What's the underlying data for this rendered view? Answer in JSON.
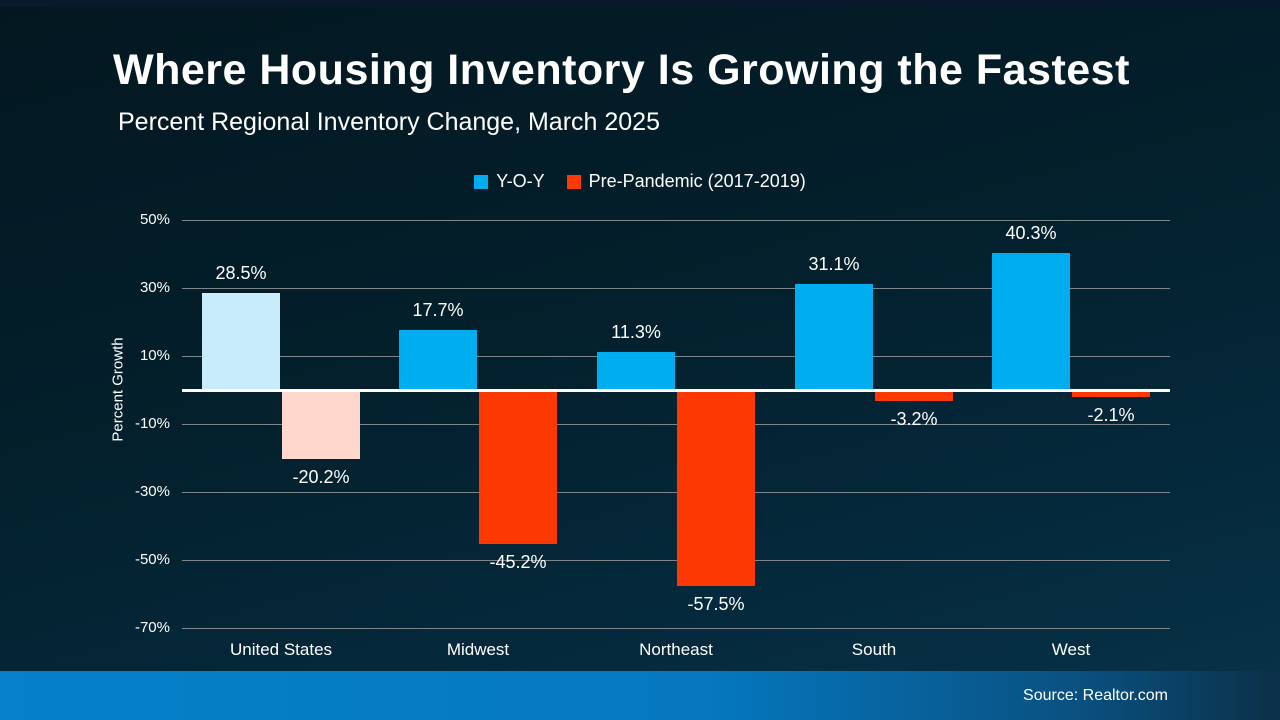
{
  "page": {
    "title": "Where Housing Inventory Is Growing the Fastest",
    "subtitle": "Percent Regional Inventory Change, March 2025",
    "source": "Source: Realtor.com"
  },
  "colors": {
    "yoy": "#00aeef",
    "yoy_highlight": "#c9ecfd",
    "prepandemic": "#fc3903",
    "prepandemic_highlight": "#ffd7cc",
    "gridline": "#7e868c",
    "zero_line": "#ffffff",
    "footer_left": "#0581c9",
    "footer_right": "#0b3047"
  },
  "legend": {
    "items": [
      {
        "label": "Y-O-Y",
        "color": "#00aeef"
      },
      {
        "label": "Pre-Pandemic (2017-2019)",
        "color": "#fc3903"
      }
    ]
  },
  "chart_data": {
    "type": "bar",
    "title": "Where Housing Inventory Is Growing the Fastest",
    "subtitle": "Percent Regional Inventory Change, March 2025",
    "categories": [
      "United States",
      "Midwest",
      "Northeast",
      "South",
      "West"
    ],
    "series": [
      {
        "name": "Y-O-Y",
        "color": "#00aeef",
        "highlight_color": "#c9ecfd",
        "values": [
          28.5,
          17.7,
          11.3,
          31.1,
          40.3
        ],
        "labels": [
          "28.5%",
          "17.7%",
          "11.3%",
          "31.1%",
          "40.3%"
        ]
      },
      {
        "name": "Pre-Pandemic (2017-2019)",
        "color": "#fc3903",
        "highlight_color": "#ffd7cc",
        "values": [
          -20.2,
          -45.2,
          -57.5,
          -3.2,
          -2.1
        ],
        "labels": [
          "-20.2%",
          "-45.2%",
          "-57.5%",
          "-3.2%",
          "-2.1%"
        ]
      }
    ],
    "highlight_category": "United States",
    "highlight_category_index": 0,
    "ylabel": "Percent Growth",
    "ylim": [
      -70,
      50
    ],
    "yticks": [
      50,
      30,
      10,
      -10,
      -30,
      -50,
      -70
    ],
    "ytick_labels": [
      "50%",
      "30%",
      "10%",
      "-10%",
      "-30%",
      "-50%",
      "-70%"
    ],
    "grid": true,
    "legend_position": "top-center",
    "source": "Source: Realtor.com"
  }
}
